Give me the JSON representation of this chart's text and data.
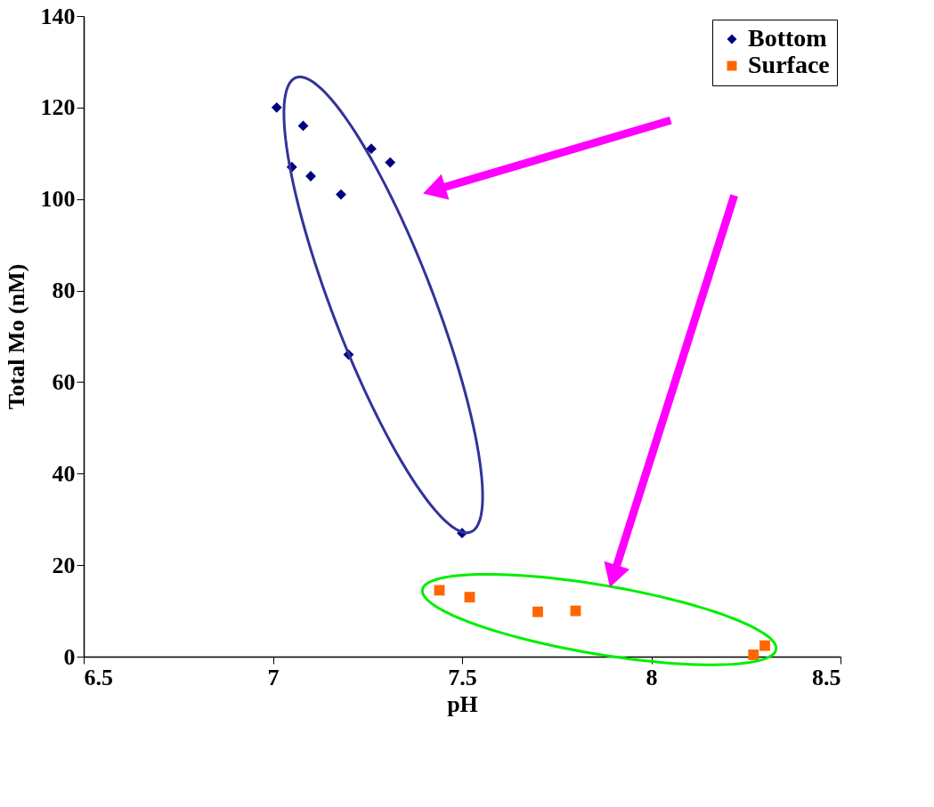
{
  "chart_data": {
    "type": "scatter",
    "xlabel": "pH",
    "ylabel": "Total Mo (nM)",
    "xlim": [
      6.5,
      8.5
    ],
    "xticks": [
      6.5,
      {
        "value": 7,
        "label": "7"
      },
      7.5,
      {
        "value": 8,
        "label": "8"
      },
      8.5
    ],
    "ylim": [
      0,
      140
    ],
    "yticks": [
      0,
      20,
      40,
      60,
      80,
      100,
      120,
      140
    ],
    "grid": false,
    "legend": "top right",
    "series": [
      {
        "name": "Bottom",
        "color": "#000080",
        "marker": "diamond",
        "x": [
          7.01,
          7.08,
          7.05,
          7.1,
          7.18,
          7.26,
          7.31,
          7.2,
          7.5
        ],
        "values": [
          120,
          116,
          107,
          105,
          101,
          111,
          108,
          66,
          27
        ]
      },
      {
        "name": "Surface",
        "color": "#ff6600",
        "marker": "square",
        "x": [
          7.44,
          7.52,
          7.7,
          7.8,
          8.27,
          8.3
        ],
        "values": [
          14.5,
          13,
          9.8,
          10,
          0.4,
          2.4
        ]
      }
    ]
  }
}
